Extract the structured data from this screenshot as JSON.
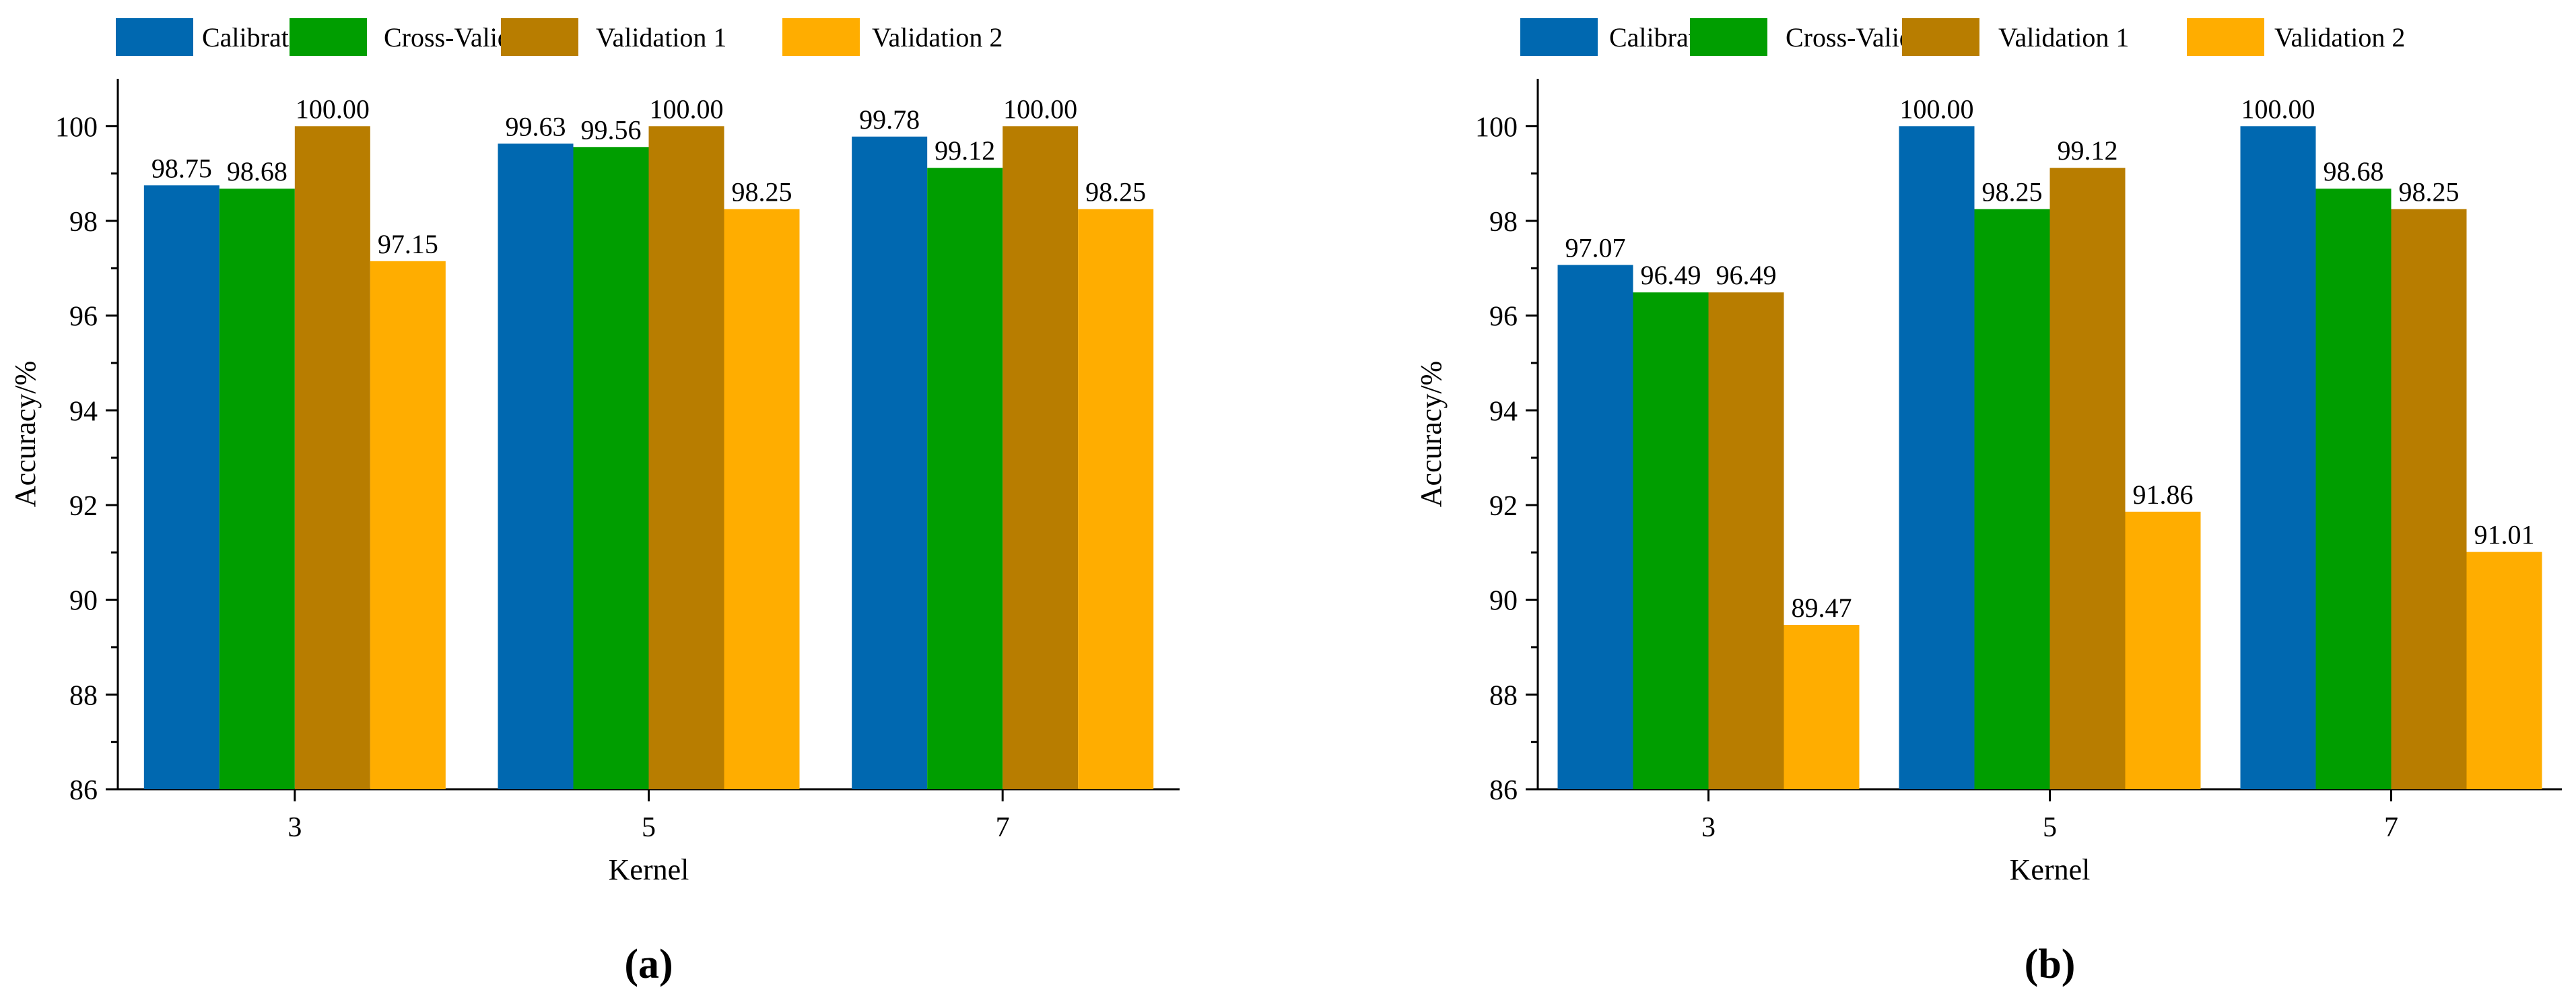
{
  "figure": {
    "panel_labels": [
      "(a)",
      "(b)"
    ]
  },
  "colors": {
    "Calibration": "#0068B0",
    "Cross-Validation": "#009E00",
    "Validation 1": "#B87D00",
    "Validation 2": "#FFAD00"
  },
  "chart_data": [
    {
      "type": "bar",
      "panel": "(a)",
      "categories": [
        "3",
        "5",
        "7"
      ],
      "series": [
        {
          "name": "Calibration",
          "values": [
            98.75,
            99.63,
            99.78
          ],
          "labels": [
            "98.75",
            "99.63",
            "99.78"
          ]
        },
        {
          "name": "Cross-Validation",
          "values": [
            98.68,
            99.56,
            99.12
          ],
          "labels": [
            "98.68",
            "99.56",
            "99.12"
          ]
        },
        {
          "name": "Validation 1",
          "values": [
            100.0,
            100.0,
            100.0
          ],
          "labels": [
            "100.00",
            "100.00",
            "100.00"
          ]
        },
        {
          "name": "Validation 2",
          "values": [
            97.15,
            98.25,
            98.25
          ],
          "labels": [
            "97.15",
            "98.25",
            "98.25"
          ]
        }
      ],
      "xlabel": "Kernel",
      "ylabel": "Accuracy/%",
      "ylim": [
        86,
        101
      ],
      "yticks": [
        "86",
        "88",
        "90",
        "92",
        "94",
        "96",
        "98",
        "100"
      ],
      "legend": "top"
    },
    {
      "type": "bar",
      "panel": "(b)",
      "categories": [
        "3",
        "5",
        "7"
      ],
      "series": [
        {
          "name": "Calibration",
          "values": [
            97.07,
            100.0,
            100.0
          ],
          "labels": [
            "97.07",
            "100.00",
            "100.00"
          ]
        },
        {
          "name": "Cross-Validation",
          "values": [
            96.49,
            98.25,
            98.68
          ],
          "labels": [
            "96.49",
            "98.25",
            "98.68"
          ]
        },
        {
          "name": "Validation 1",
          "values": [
            96.49,
            99.12,
            98.25
          ],
          "labels": [
            "96.49",
            "99.12",
            "98.25"
          ]
        },
        {
          "name": "Validation 2",
          "values": [
            89.47,
            91.86,
            91.01
          ],
          "labels": [
            "89.47",
            "91.86",
            "91.01"
          ]
        }
      ],
      "xlabel": "Kernel",
      "ylabel": "Accuracy/%",
      "ylim": [
        86,
        101
      ],
      "yticks": [
        "86",
        "88",
        "90",
        "92",
        "94",
        "96",
        "98",
        "100"
      ],
      "legend": "top"
    }
  ]
}
